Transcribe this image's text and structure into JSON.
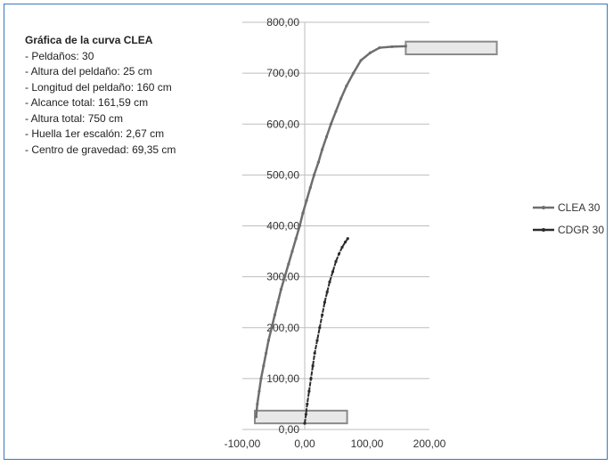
{
  "info": {
    "title": "Gráfica de la curva CLEA",
    "lines": [
      "- Peldaños:  30",
      "- Altura del peldaño: 25 cm",
      "- Longitud del peldaño: 160 cm",
      "- Alcance total: 161,59 cm",
      "- Altura total: 750 cm",
      "- Huella 1er escalón:  2,67 cm",
      "- Centro de gravedad:  69,35 cm"
    ]
  },
  "colors": {
    "clea": "#6e6e6e",
    "cdgr": "#2b2b2b",
    "grid": "#bdbdbd",
    "box_fill": "#e8e8e8",
    "box_stroke": "#8a8a8a"
  },
  "chart_data": {
    "type": "scatter",
    "xlim": [
      -100,
      200
    ],
    "ylim": [
      0,
      800
    ],
    "xticks": [
      -100,
      0,
      100,
      200
    ],
    "yticks": [
      0,
      100,
      200,
      300,
      400,
      500,
      600,
      700,
      800
    ],
    "xtick_labels": [
      "-100,00",
      "0,00",
      "100,00",
      "200,00"
    ],
    "ytick_labels": [
      "0,00",
      "100,00",
      "200,00",
      "300,00",
      "400,00",
      "500,00",
      "600,00",
      "700,00",
      "800,00"
    ],
    "grid": "horizontal",
    "legend_position": "right",
    "series": [
      {
        "name": "CLEA 30",
        "x": [
          -78,
          -76,
          -73,
          -70,
          -66,
          -62,
          -58,
          -53,
          -48,
          -43,
          -38,
          -32,
          -26,
          -20,
          -14,
          -8,
          -3,
          3,
          9,
          15,
          22,
          28,
          35,
          42,
          50,
          58,
          67,
          78,
          90,
          105,
          120,
          140,
          162
        ],
        "y": [
          25,
          50,
          75,
          100,
          125,
          150,
          175,
          200,
          225,
          250,
          275,
          300,
          325,
          350,
          375,
          400,
          425,
          450,
          475,
          500,
          525,
          550,
          575,
          600,
          625,
          650,
          675,
          700,
          725,
          740,
          750,
          752,
          753
        ]
      },
      {
        "name": "CDGR 30",
        "x": [
          0,
          2,
          4,
          7,
          10,
          13,
          16,
          20,
          24,
          28,
          32,
          36,
          40,
          45,
          50,
          55,
          60,
          65,
          69
        ],
        "y": [
          12,
          30,
          50,
          75,
          100,
          125,
          150,
          175,
          200,
          225,
          250,
          270,
          290,
          310,
          330,
          345,
          358,
          368,
          375
        ]
      }
    ],
    "boxes": [
      {
        "x0": -80,
        "x1": 68,
        "y0": 12,
        "y1": 37
      },
      {
        "x0": 162,
        "x1": 308,
        "y0": 737,
        "y1": 762
      }
    ]
  }
}
